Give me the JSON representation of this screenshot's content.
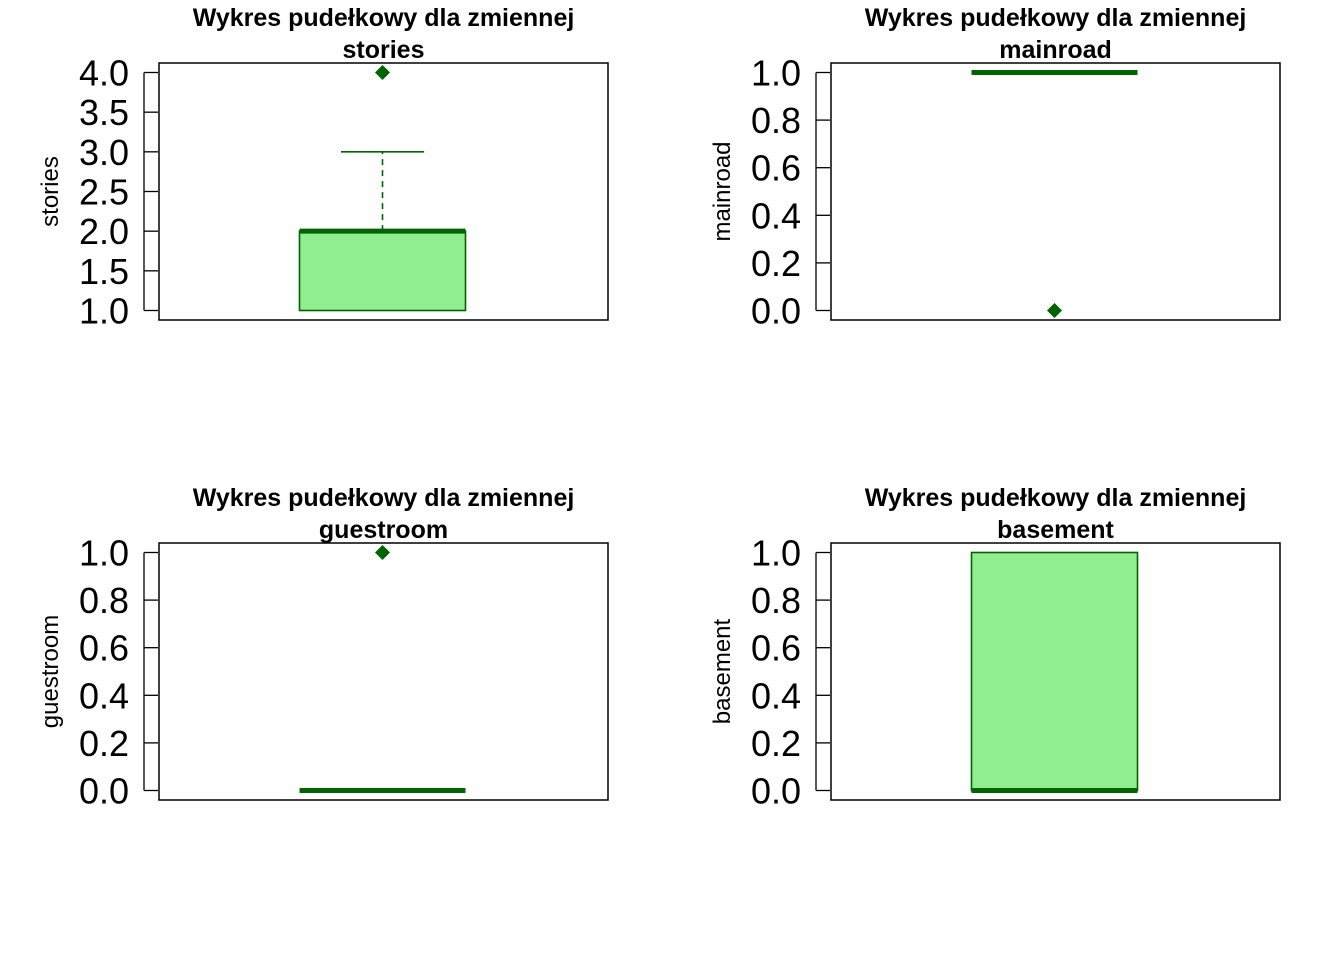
{
  "colors": {
    "box_fill": "#90EE90",
    "box_line": "#006400",
    "outlier": "#006400",
    "frame": "#000000"
  },
  "chart_data": [
    {
      "type": "boxplot",
      "title_line1": "Wykres pudełkowy dla zmiennej",
      "title_line2": "stories",
      "ylabel": "stories",
      "ylim": [
        1.0,
        4.0
      ],
      "yticks": [
        1.0,
        1.5,
        2.0,
        2.5,
        3.0,
        3.5,
        4.0
      ],
      "ytick_labels": [
        "1.0",
        "1.5",
        "2.0",
        "2.5",
        "3.0",
        "3.5",
        "4.0"
      ],
      "min": 1.0,
      "q1": 1.0,
      "median": 2.0,
      "q3": 2.0,
      "max": 3.0,
      "outliers": [
        4.0
      ]
    },
    {
      "type": "boxplot",
      "title_line1": "Wykres pudełkowy dla zmiennej",
      "title_line2": "mainroad",
      "ylabel": "mainroad",
      "ylim": [
        0.0,
        1.0
      ],
      "yticks": [
        0.0,
        0.2,
        0.4,
        0.6,
        0.8,
        1.0
      ],
      "ytick_labels": [
        "0.0",
        "0.2",
        "0.4",
        "0.6",
        "0.8",
        "1.0"
      ],
      "min": 1.0,
      "q1": 1.0,
      "median": 1.0,
      "q3": 1.0,
      "max": 1.0,
      "outliers": [
        0.0
      ]
    },
    {
      "type": "boxplot",
      "title_line1": "Wykres pudełkowy dla zmiennej",
      "title_line2": "guestroom",
      "ylabel": "guestroom",
      "ylim": [
        0.0,
        1.0
      ],
      "yticks": [
        0.0,
        0.2,
        0.4,
        0.6,
        0.8,
        1.0
      ],
      "ytick_labels": [
        "0.0",
        "0.2",
        "0.4",
        "0.6",
        "0.8",
        "1.0"
      ],
      "min": 0.0,
      "q1": 0.0,
      "median": 0.0,
      "q3": 0.0,
      "max": 0.0,
      "outliers": [
        1.0
      ]
    },
    {
      "type": "boxplot",
      "title_line1": "Wykres pudełkowy dla zmiennej",
      "title_line2": "basement",
      "ylabel": "basement",
      "ylim": [
        0.0,
        1.0
      ],
      "yticks": [
        0.0,
        0.2,
        0.4,
        0.6,
        0.8,
        1.0
      ],
      "ytick_labels": [
        "0.0",
        "0.2",
        "0.4",
        "0.6",
        "0.8",
        "1.0"
      ],
      "min": 0.0,
      "q1": 0.0,
      "median": 0.0,
      "q3": 1.0,
      "max": 1.0,
      "outliers": []
    }
  ]
}
